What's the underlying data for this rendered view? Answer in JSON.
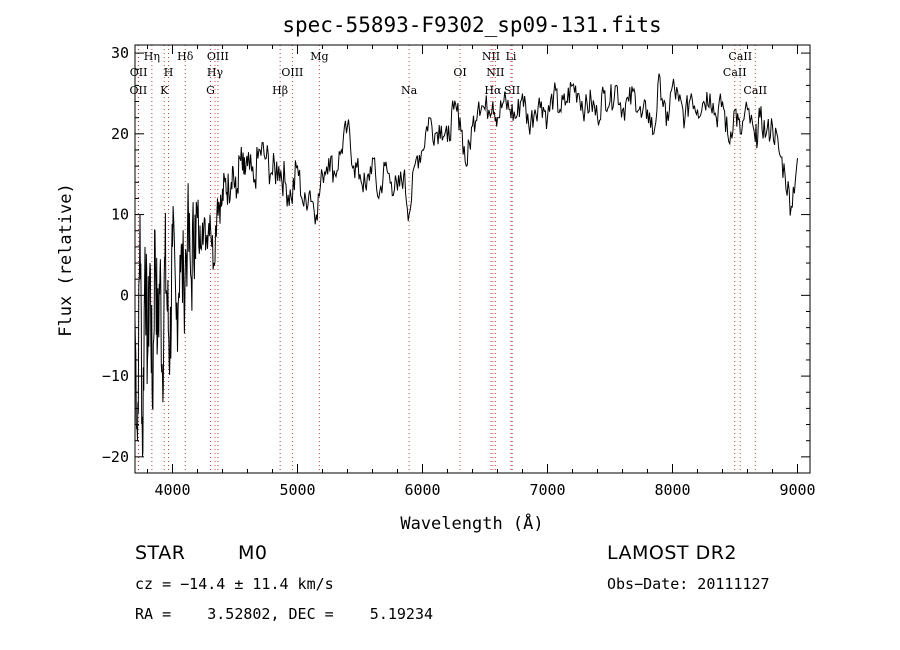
{
  "chart_data": {
    "type": "line",
    "title": "spec-55893-F9302_sp09-131.fits",
    "xlabel": "Wavelength (Å)",
    "ylabel": "Flux (relative)",
    "xlim": [
      3700,
      9100
    ],
    "ylim": [
      -22,
      31
    ],
    "xticks": [
      4000,
      5000,
      6000,
      7000,
      8000,
      9000
    ],
    "yticks": [
      -20,
      -10,
      0,
      10,
      20,
      30
    ],
    "grid": false,
    "series": [
      {
        "x": [
          3700,
          3720,
          3740,
          3760,
          3780,
          3800,
          3820,
          3840,
          3860,
          3880,
          3900,
          3920,
          3940,
          3960,
          3980,
          4000,
          4030,
          4060,
          4090,
          4120,
          4150,
          4180,
          4210,
          4240,
          4270,
          4300,
          4330,
          4360,
          4390,
          4420,
          4450,
          4480,
          4510,
          4540,
          4570,
          4600,
          4650,
          4700,
          4750,
          4800,
          4850,
          4900,
          4950,
          5000,
          5050,
          5100,
          5150,
          5200,
          5250,
          5300,
          5350,
          5400,
          5450,
          5500,
          5550,
          5600,
          5650,
          5700,
          5750,
          5800,
          5850,
          5893,
          5950,
          6000,
          6050,
          6100,
          6150,
          6200,
          6250,
          6300,
          6350,
          6400,
          6450,
          6500,
          6563,
          6600,
          6650,
          6700,
          6750,
          6800,
          6850,
          6900,
          6950,
          7000,
          7050,
          7100,
          7150,
          7200,
          7250,
          7300,
          7350,
          7400,
          7450,
          7500,
          7550,
          7600,
          7650,
          7700,
          7750,
          7800,
          7850,
          7900,
          7950,
          8000,
          8050,
          8100,
          8150,
          8200,
          8250,
          8300,
          8350,
          8400,
          8450,
          8500,
          8542,
          8600,
          8662,
          8700,
          8750,
          8800,
          8850,
          8900,
          8950,
          9000
        ],
        "y": [
          -3,
          -18,
          10,
          -20,
          6,
          -8,
          4,
          -14,
          8,
          -6,
          3,
          -10,
          5,
          -2,
          -7,
          6,
          -3,
          5,
          1,
          8,
          2,
          10,
          6,
          9,
          7,
          10,
          4,
          12,
          11,
          14,
          13,
          16,
          12,
          17,
          15,
          16,
          14,
          18,
          17,
          15,
          16,
          14,
          12,
          16,
          11,
          13,
          10,
          15,
          17,
          15,
          18,
          21,
          16,
          15,
          13,
          17,
          12,
          16,
          14,
          13,
          15,
          10,
          17,
          18,
          22,
          20,
          21,
          19,
          23,
          22,
          16,
          21,
          24,
          23,
          24,
          22,
          24,
          23,
          22,
          25,
          21,
          23,
          24,
          22,
          25,
          23,
          24,
          26,
          25,
          23,
          24,
          22,
          25,
          24,
          26,
          23,
          24,
          25,
          22,
          23,
          20,
          27,
          21,
          26,
          24,
          22,
          25,
          23,
          24,
          25,
          22,
          24,
          19,
          23,
          20,
          23,
          19,
          22,
          20,
          21,
          18,
          15,
          11,
          17
        ]
      }
    ],
    "lines": [
      {
        "label": "OII",
        "x": 3727,
        "row": 3
      },
      {
        "label": "OII",
        "x": 3729,
        "row": 2
      },
      {
        "label": "Hη",
        "x": 3835,
        "row": 1
      },
      {
        "label": "K",
        "x": 3934,
        "row": 3
      },
      {
        "label": "H",
        "x": 3968,
        "row": 2
      },
      {
        "label": "Hδ",
        "x": 4102,
        "row": 1
      },
      {
        "label": "G",
        "x": 4304,
        "row": 3
      },
      {
        "label": "Hγ",
        "x": 4340,
        "row": 2
      },
      {
        "label": "OIII",
        "x": 4363,
        "row": 1
      },
      {
        "label": "Hβ",
        "x": 4861,
        "row": 3
      },
      {
        "label": "OIII",
        "x": 4959,
        "row": 2
      },
      {
        "label": "Mg",
        "x": 5175,
        "row": 1
      },
      {
        "label": "Na",
        "x": 5893,
        "row": 3
      },
      {
        "label": "OI",
        "x": 6300,
        "row": 2
      },
      {
        "label": "Hα",
        "x": 6563,
        "row": 3
      },
      {
        "label": "NII",
        "x": 6583,
        "row": 2
      },
      {
        "label": "NII",
        "x": 6548,
        "row": 1
      },
      {
        "label": "Li",
        "x": 6708,
        "row": 1
      },
      {
        "label": "SII",
        "x": 6717,
        "row": 3
      },
      {
        "label": "CaII",
        "x": 8498,
        "row": 2
      },
      {
        "label": "CaII",
        "x": 8542,
        "row": 1
      },
      {
        "label": "CaII",
        "x": 8662,
        "row": 3
      }
    ]
  },
  "info": {
    "object_class": "STAR",
    "subclass": "M0",
    "survey": "LAMOST DR2",
    "cz": "cz = −14.4 ± 11.4 km/s",
    "obs_date": "Obs−Date: 20111127",
    "coords": "RA =    3.52802, DEC =    5.19234"
  }
}
